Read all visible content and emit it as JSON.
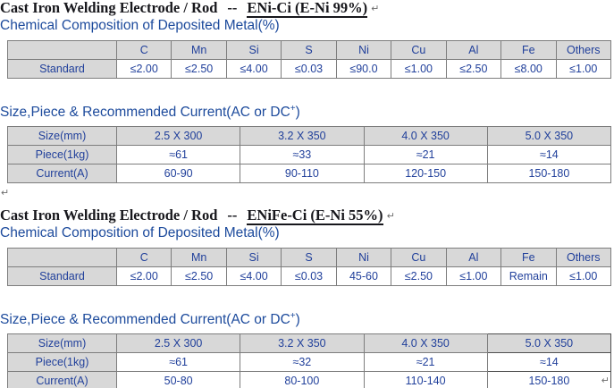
{
  "colors": {
    "table_text": "#21409b",
    "heading_blue": "#1c4a9c",
    "title_black": "#17171c",
    "cell_gray": "#d8d8d8",
    "border_gray": "#7d7d7d"
  },
  "paragraph_mark": "↵",
  "section1": {
    "title": {
      "main": "Cast Iron Welding Electrode / Rod",
      "dash": "--",
      "spec": "ENi-Ci (E-Ni 99%)",
      "return_mark": "↵"
    },
    "chem_heading": "Chemical Composition of Deposited Metal(%)",
    "chem_table": {
      "header": [
        "",
        "C",
        "Mn",
        "Si",
        "S",
        "Ni",
        "Cu",
        "Al",
        "Fe",
        "Others"
      ],
      "row_label": "Standard",
      "values": [
        "≤2.00",
        "≤2.50",
        "≤4.00",
        "≤0.03",
        "≤90.0",
        "≤1.00",
        "≤2.50",
        "≤8.00",
        "≤1.00"
      ]
    },
    "size_heading": {
      "prefix": "Size,Piece & Recommended Current(AC or DC",
      "sup": "+",
      "suffix": ")"
    },
    "size_table": {
      "rows": [
        {
          "label": "Size(mm)",
          "values": [
            "2.5 X 300",
            "3.2 X 350",
            "4.0 X 350",
            "5.0 X 350"
          ]
        },
        {
          "label": "Piece(1kg)",
          "values": [
            "≈61",
            "≈33",
            "≈21",
            "≈14"
          ]
        },
        {
          "label": "Current(A)",
          "values": [
            "60-90",
            "90-110",
            "120-150",
            "150-180"
          ]
        }
      ]
    }
  },
  "section2": {
    "title": {
      "main": "Cast Iron Welding Electrode / Rod",
      "dash": "--",
      "spec": "ENiFe-Ci (E-Ni 55%)",
      "return_mark": "↵"
    },
    "chem_heading": "Chemical Composition of Deposited Metal(%)",
    "chem_table": {
      "header": [
        "",
        "C",
        "Mn",
        "Si",
        "S",
        "Ni",
        "Cu",
        "Al",
        "Fe",
        "Others"
      ],
      "row_label": "Standard",
      "values": [
        "≤2.00",
        "≤2.50",
        "≤4.00",
        "≤0.03",
        "45-60",
        "≤2.50",
        "≤1.00",
        "Remain",
        "≤1.00"
      ]
    },
    "size_heading": {
      "prefix": "Size,Piece & Recommended Current(AC or DC",
      "sup": "+",
      "suffix": ")"
    },
    "size_table": {
      "rows": [
        {
          "label": "Size(mm)",
          "values": [
            "2.5 X 300",
            "3.2 X 350",
            "4.0 X 350",
            "5.0 X 350"
          ]
        },
        {
          "label": "Piece(1kg)",
          "values": [
            "≈61",
            "≈32",
            "≈21",
            "≈14"
          ]
        },
        {
          "label": "Current(A)",
          "values": [
            "50-80",
            "80-100",
            "110-140",
            "150-180"
          ]
        }
      ]
    }
  },
  "end_mark": "↵"
}
